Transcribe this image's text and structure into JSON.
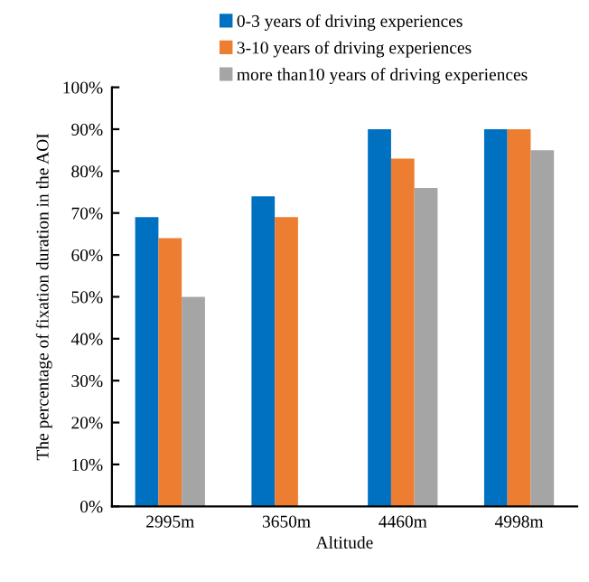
{
  "chart_data": {
    "type": "bar",
    "categories": [
      "2995m",
      "3650m",
      "4460m",
      "4998m"
    ],
    "xlabel": "Altitude",
    "ylabel": "The percentage of fixation duration in the AOI",
    "series": [
      {
        "name": "0-3 years of driving experiences",
        "color": "#0070c0",
        "values": [
          69,
          74,
          90,
          90
        ]
      },
      {
        "name": "3-10 years of driving experiences",
        "color": "#ed7d31",
        "values": [
          64,
          69,
          83,
          90
        ]
      },
      {
        "name": "more than10 years of driving experiences",
        "color": "#a5a5a5",
        "values": [
          50,
          null,
          76,
          85
        ]
      }
    ],
    "ylim": [
      0,
      100
    ],
    "yticks": [
      {
        "value": 0,
        "label": "0%"
      },
      {
        "value": 10,
        "label": "10%"
      },
      {
        "value": 20,
        "label": "20%"
      },
      {
        "value": 30,
        "label": "30%"
      },
      {
        "value": 40,
        "label": "40%"
      },
      {
        "value": 50,
        "label": "50%"
      },
      {
        "value": 60,
        "label": "60%"
      },
      {
        "value": 70,
        "label": "70%"
      },
      {
        "value": 80,
        "label": "80%"
      },
      {
        "value": 90,
        "label": "90%"
      },
      {
        "value": 100,
        "label": "100%"
      }
    ],
    "grid": false,
    "legend": "top"
  }
}
